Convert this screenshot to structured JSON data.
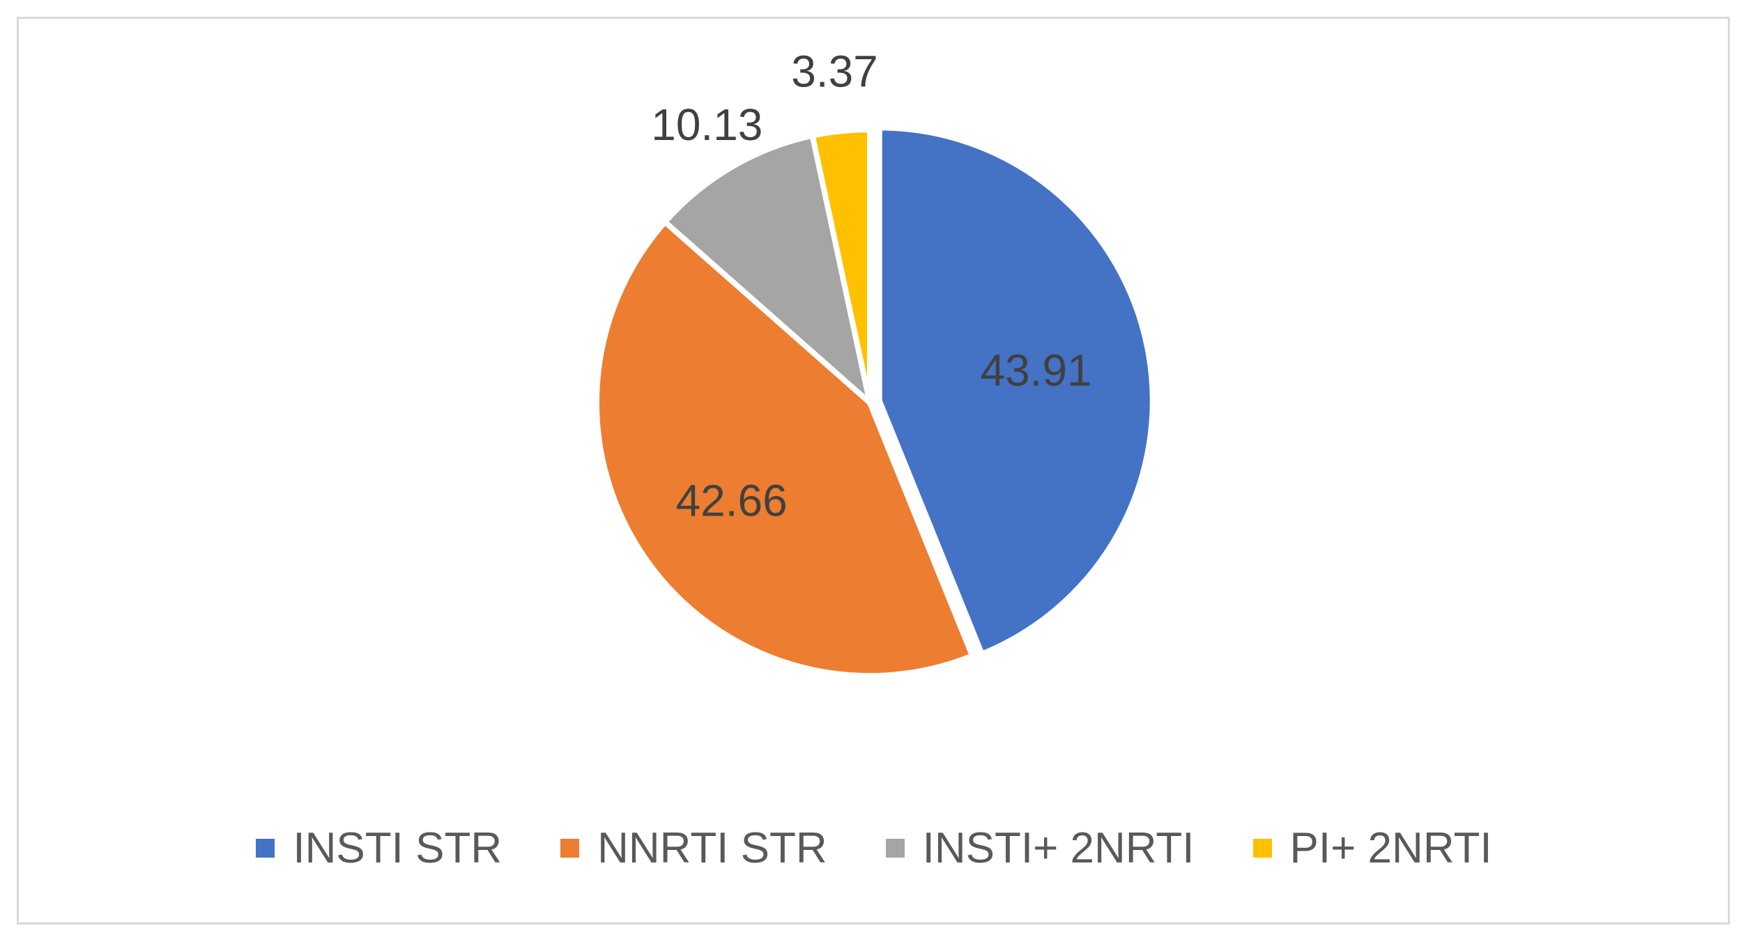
{
  "chart_data": {
    "type": "pie",
    "title": "",
    "categories": [
      "INSTI STR",
      "NNRTI STR",
      "INSTI+ 2NRTI",
      "PI+ 2NRTI"
    ],
    "values": [
      43.91,
      42.66,
      10.13,
      3.37
    ],
    "data_labels": [
      "43.91",
      "42.66",
      "10.13",
      "3.37"
    ],
    "colors": [
      "#4472C4",
      "#ED7D31",
      "#A5A5A5",
      "#FFC000"
    ],
    "start_angle_deg": 0,
    "direction": "clockwise",
    "exploded_slices": [
      "INSTI STR"
    ],
    "legend": {
      "position": "bottom",
      "entries": [
        "INSTI STR",
        "NNRTI STR",
        "INSTI+ 2NRTI",
        "PI+ 2NRTI"
      ]
    },
    "grid": false
  }
}
